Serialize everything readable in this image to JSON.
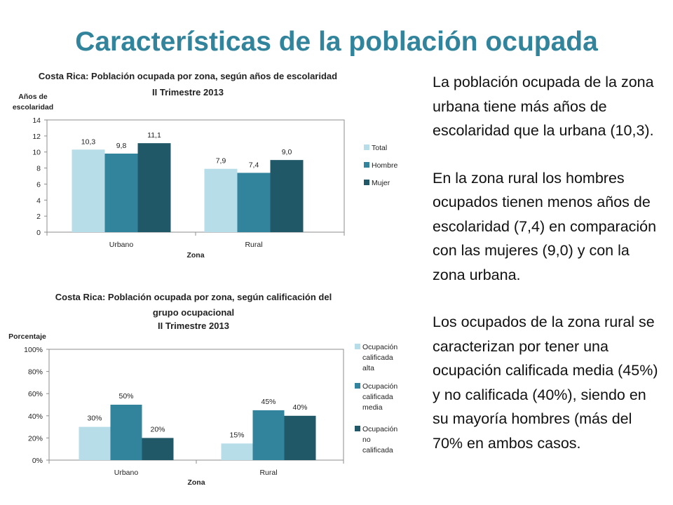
{
  "slide": {
    "title": "Características de la población ocupada",
    "paragraphs": [
      "La población ocupada de la zona urbana  tiene más años de escolaridad que la urbana (10,3).",
      "En la zona rural los hombres ocupados tienen menos años de escolaridad (7,4) en comparación con las mujeres (9,0) y con la zona urbana.",
      "Los ocupados de la zona rural se caracterizan por tener una ocupación calificada media (45%) y no calificada (40%), siendo en su mayoría hombres (más del 70% en ambos casos."
    ]
  },
  "chart_data": [
    {
      "type": "bar",
      "title_lines": [
        "Costa Rica: Población ocupada por zona, según años de escolaridad",
        "II Trimestre 2013"
      ],
      "ylabel_lines": [
        "Años de",
        "escolaridad"
      ],
      "xlabel": "Zona",
      "categories": [
        "Urbano",
        "Rural"
      ],
      "yticks": [
        0,
        2,
        4,
        6,
        8,
        10,
        12,
        14
      ],
      "ytick_labels": [
        "0",
        "2",
        "4",
        "6",
        "8",
        "10",
        "12",
        "14"
      ],
      "ylim": [
        0,
        14
      ],
      "series": [
        {
          "name": "Total",
          "color": "#B7DDE8",
          "values": [
            10.3,
            7.9
          ],
          "labels": [
            "10,3",
            "7,9"
          ]
        },
        {
          "name": "Hombre",
          "color": "#31849B",
          "values": [
            9.8,
            7.4
          ],
          "labels": [
            "9,8",
            "7,4"
          ]
        },
        {
          "name": "Mujer",
          "color": "#215868",
          "values": [
            11.1,
            9.0
          ],
          "labels": [
            "11,1",
            "9,0"
          ]
        }
      ],
      "legend_position": "right",
      "grid": false
    },
    {
      "type": "bar",
      "title_lines": [
        "Costa Rica: Población ocupada por zona, según calificación del",
        "grupo ocupacional",
        "II Trimestre 2013"
      ],
      "ylabel_lines": [
        "Porcentaje"
      ],
      "xlabel": "Zona",
      "categories": [
        "Urbano",
        "Rural"
      ],
      "yticks": [
        0,
        20,
        40,
        60,
        80,
        100
      ],
      "ytick_labels": [
        "0%",
        "20%",
        "40%",
        "60%",
        "80%",
        "100%"
      ],
      "ylim": [
        0,
        100
      ],
      "series": [
        {
          "name_lines": [
            "Ocupación",
            "calificada",
            "alta"
          ],
          "color": "#B7DDE8",
          "values": [
            30,
            15
          ],
          "labels": [
            "30%",
            "15%"
          ]
        },
        {
          "name_lines": [
            "Ocupación",
            "calificada",
            "media"
          ],
          "color": "#31849B",
          "values": [
            50,
            45
          ],
          "labels": [
            "50%",
            "45%"
          ]
        },
        {
          "name_lines": [
            "Ocupación",
            "no",
            "calificada"
          ],
          "color": "#215868",
          "values": [
            20,
            40
          ],
          "labels": [
            "20%",
            "40%"
          ]
        }
      ],
      "legend_position": "right",
      "grid": false
    }
  ]
}
